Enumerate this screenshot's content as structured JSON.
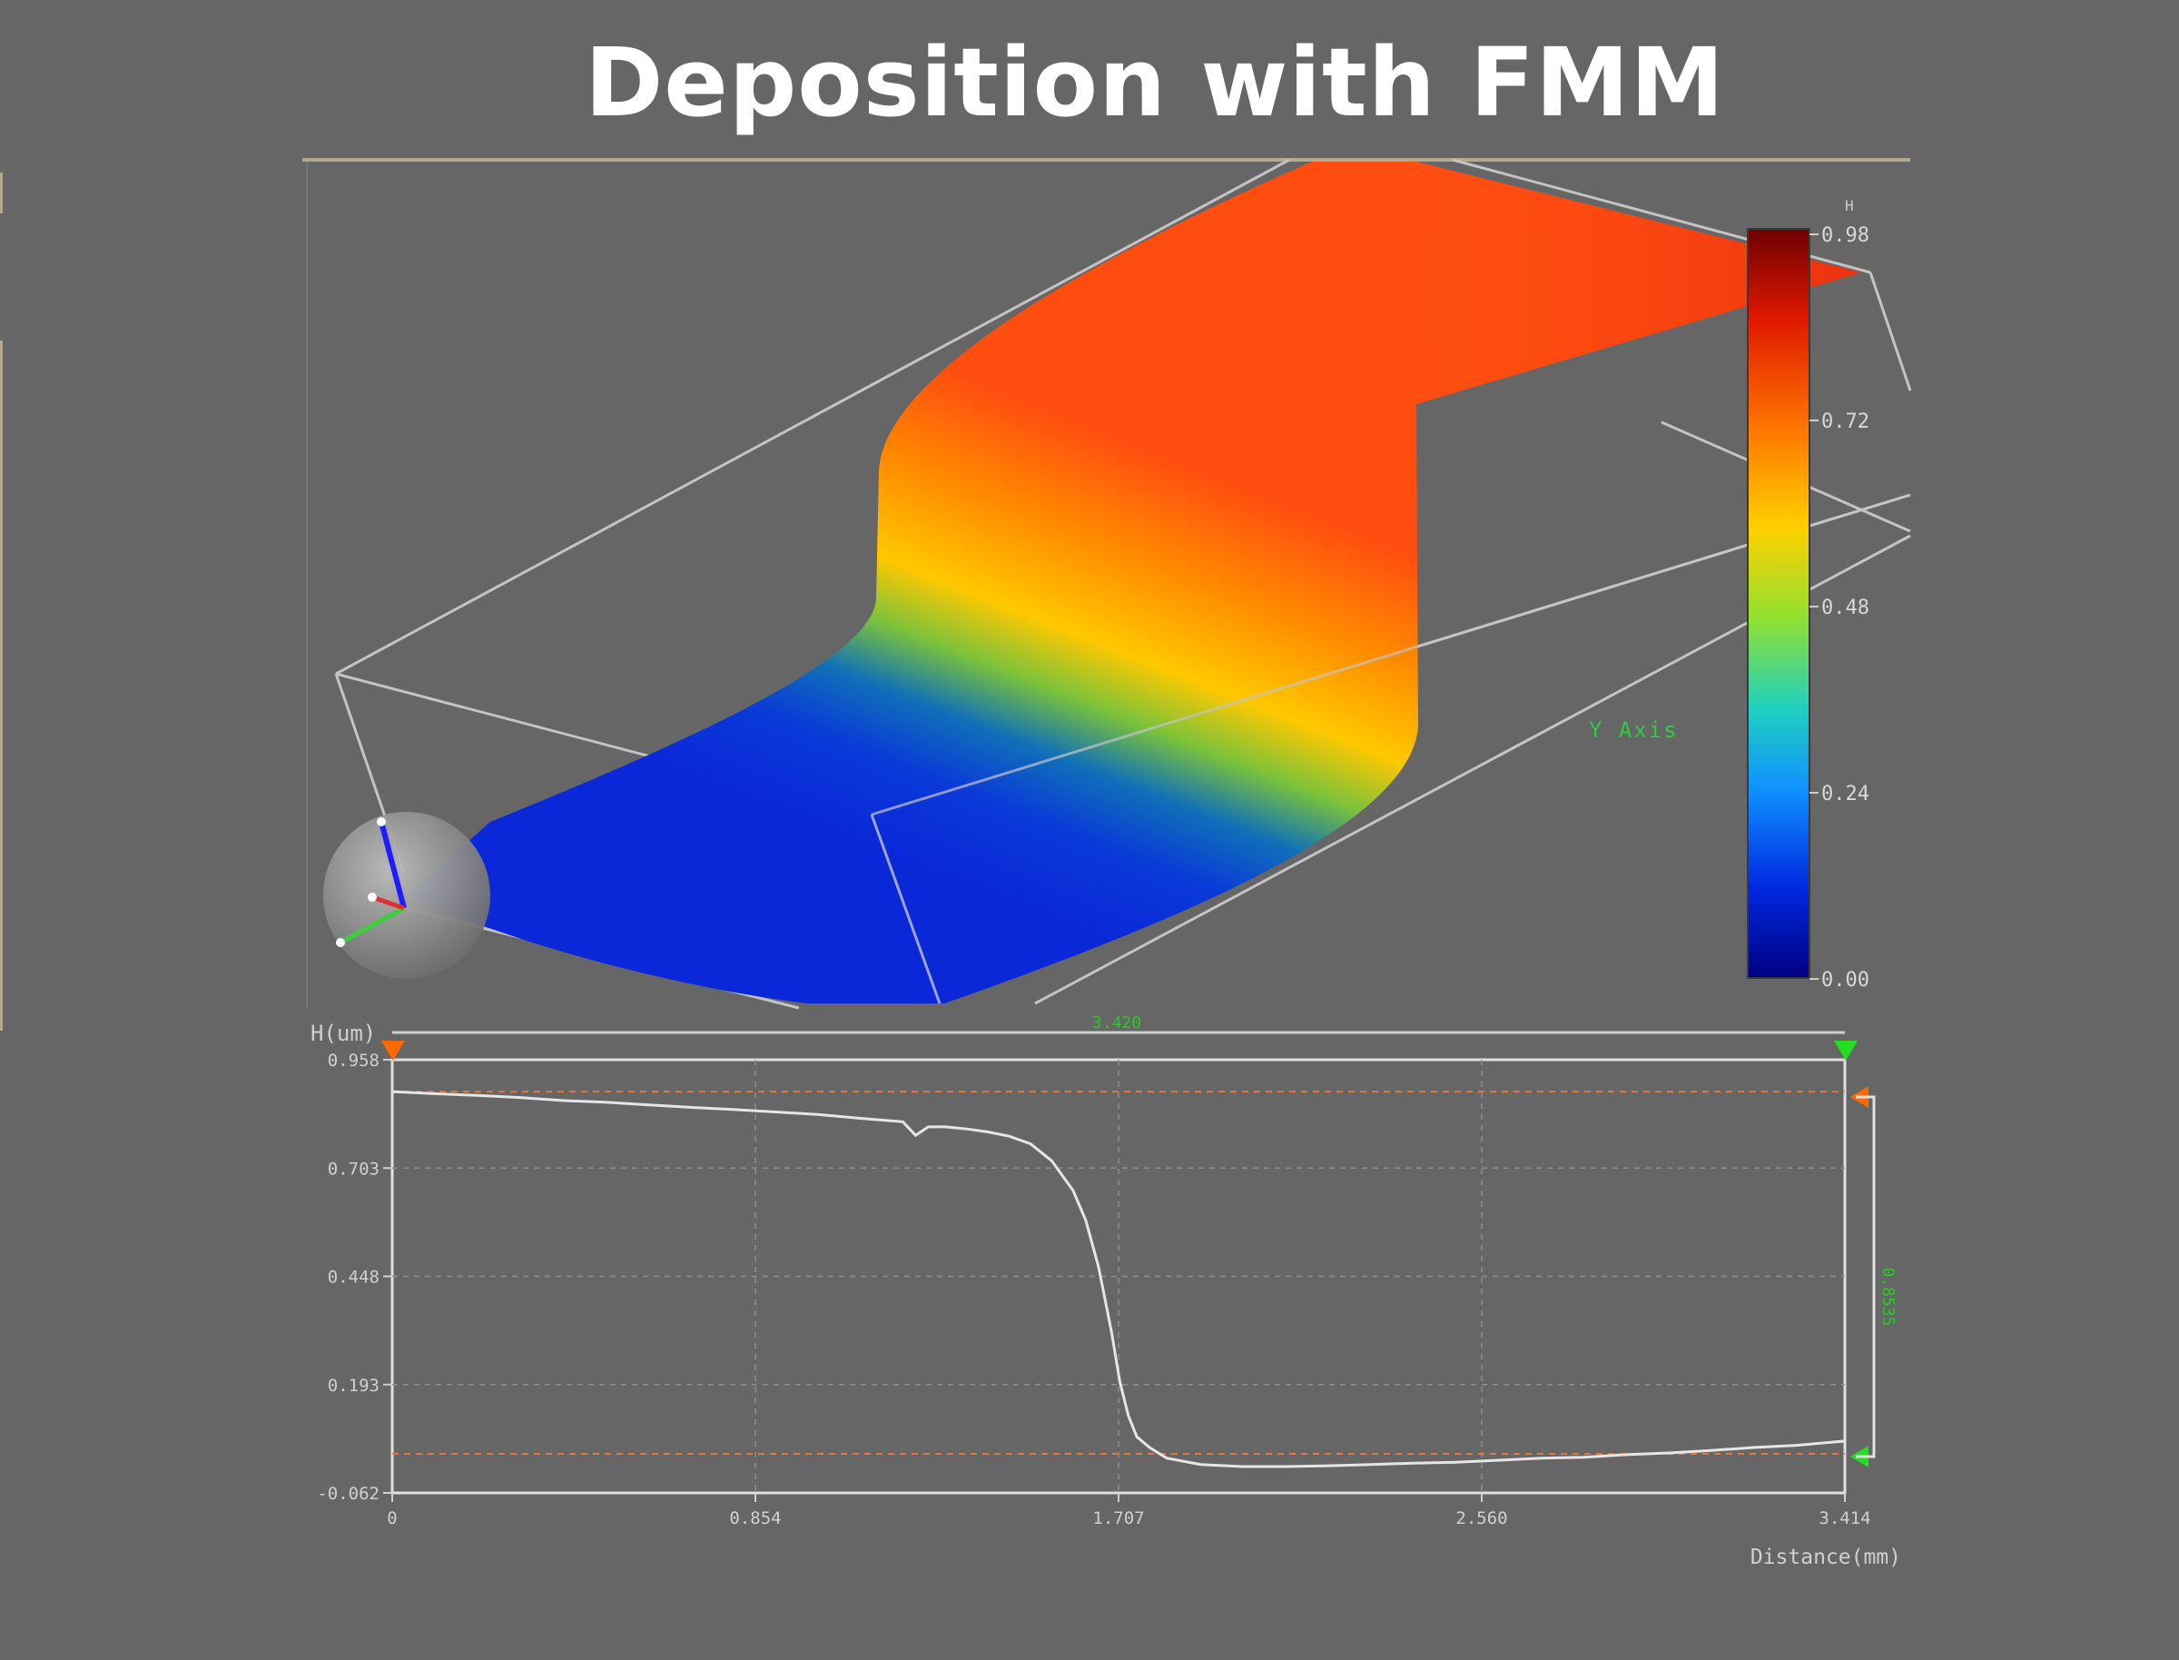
{
  "title": "Deposition with FMM",
  "colors": {
    "background": "#666666",
    "profile_line": "#e6e6e6",
    "cursor_left": "#ff6a00",
    "cursor_right": "#22dd22",
    "dashed_level": "#e07840",
    "measure_text": "#22cc22"
  },
  "surface_3d": {
    "colorbar_unit": "H",
    "colorbar_ticks": [
      "0.98",
      "0.72",
      "0.48",
      "0.24",
      "0.00"
    ],
    "axis_label": "Y Axis",
    "orientation_widget": "axis-gizmo-icon"
  },
  "profile": {
    "ylabel": "H(um)",
    "xlabel": "Distance(mm)",
    "y_ticks": [
      "0.958",
      "0.703",
      "0.448",
      "0.193",
      "-0.062"
    ],
    "x_ticks": [
      "0",
      "0.854",
      "1.707",
      "2.560",
      "3.414"
    ],
    "cursor_distance": "3.420",
    "step_height": "0.8535"
  },
  "chart_data": {
    "type": "line",
    "title": "",
    "xlabel": "Distance(mm)",
    "ylabel": "H(um)",
    "xlim": [
      0,
      3.414
    ],
    "ylim": [
      -0.062,
      0.958
    ],
    "grid": true,
    "series": [
      {
        "x": [
          0,
          0.1,
          0.2,
          0.3,
          0.4,
          0.5,
          0.6,
          0.7,
          0.8,
          0.9,
          1.0,
          1.1,
          1.2,
          1.23,
          1.26,
          1.3,
          1.35,
          1.4,
          1.45,
          1.5,
          1.55,
          1.6,
          1.63,
          1.66,
          1.69,
          1.71,
          1.73,
          1.75,
          1.78,
          1.82,
          1.9,
          2.0,
          2.1,
          2.2,
          2.3,
          2.4,
          2.5,
          2.6,
          2.7,
          2.8,
          2.9,
          3.0,
          3.1,
          3.2,
          3.3,
          3.414
        ],
        "y": [
          0.883,
          0.878,
          0.874,
          0.869,
          0.862,
          0.858,
          0.852,
          0.846,
          0.841,
          0.835,
          0.829,
          0.82,
          0.812,
          0.78,
          0.8,
          0.8,
          0.795,
          0.788,
          0.778,
          0.76,
          0.72,
          0.65,
          0.58,
          0.47,
          0.32,
          0.2,
          0.12,
          0.07,
          0.045,
          0.02,
          0.005,
          0.0,
          0.0,
          0.002,
          0.005,
          0.008,
          0.01,
          0.015,
          0.02,
          0.022,
          0.028,
          0.032,
          0.038,
          0.045,
          0.05,
          0.06
        ]
      }
    ],
    "reference_levels": [
      0.883,
      0.03
    ]
  }
}
